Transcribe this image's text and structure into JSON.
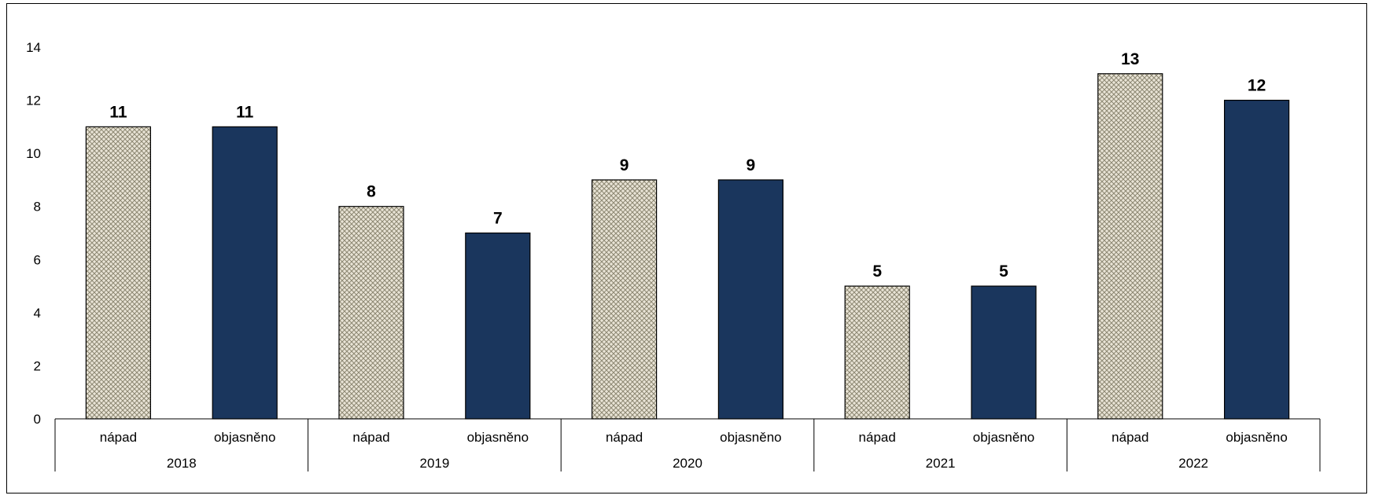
{
  "chart_data": {
    "type": "bar",
    "title": "",
    "xlabel": "",
    "ylabel": "",
    "ylim": [
      0,
      14
    ],
    "yticks": [
      "0",
      "2",
      "4",
      "6",
      "8",
      "10",
      "12",
      "14"
    ],
    "groups": [
      "2018",
      "2019",
      "2020",
      "2021",
      "2022"
    ],
    "subcategories": [
      "nápad",
      "objasněno"
    ],
    "series": [
      {
        "key": "napad",
        "values": [
          11,
          8,
          9,
          5,
          13
        ],
        "color": "#e9e4d6",
        "pattern": "crosshatch"
      },
      {
        "key": "objasneno",
        "values": [
          11,
          7,
          9,
          5,
          12
        ],
        "color": "#1a365d"
      }
    ],
    "grid": false,
    "legend": "none"
  }
}
